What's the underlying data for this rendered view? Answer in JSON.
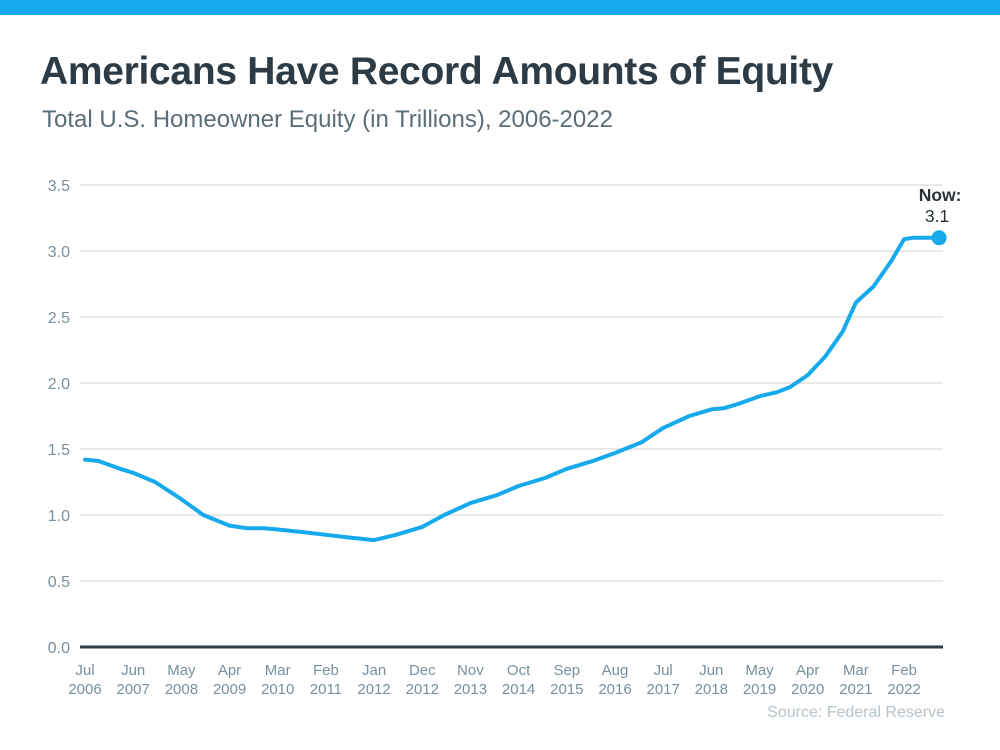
{
  "page": {
    "title": "Americans Have Record Amounts of Equity",
    "subtitle": "Total U.S. Homeowner Equity (in Trillions), 2006-2022",
    "source": "Source: Federal Reserve"
  },
  "colors": {
    "accent": "#16aaec",
    "line": "#16aaec",
    "grid": "#e2e2e2",
    "axis": "#2d3b45",
    "tick_text": "#78909c",
    "annotation_text": "#263238",
    "title_text": "#2c3b45",
    "subtitle_text": "#5b6e78",
    "source_text": "#b6c2ca"
  },
  "chart_data": {
    "type": "line",
    "title": "Americans Have Record Amounts of Equity",
    "subtitle": "Total U.S. Homeowner Equity (in Trillions), 2006-2022",
    "xlabel": "",
    "ylabel": "",
    "ylim": [
      0,
      3.5
    ],
    "grid": true,
    "legend": false,
    "yticks": [
      0.0,
      0.5,
      1.0,
      1.5,
      2.0,
      2.5,
      3.0,
      3.5
    ],
    "ytick_labels": [
      "0.0",
      "0.5",
      "1.0",
      "1.5",
      "2.0",
      "2.5",
      "3.0",
      "3.5"
    ],
    "xticks": {
      "months": [
        "Jul",
        "Jun",
        "May",
        "Apr",
        "Mar",
        "Feb",
        "Jan",
        "Dec",
        "Nov",
        "Oct",
        "Sep",
        "Aug",
        "Jul",
        "Jun",
        "May",
        "Apr",
        "Mar",
        "Feb"
      ],
      "years": [
        "2006",
        "2007",
        "2008",
        "2009",
        "2010",
        "2011",
        "2012",
        "2012",
        "2013",
        "2014",
        "2015",
        "2016",
        "2017",
        "2018",
        "2019",
        "2020",
        "2021",
        "2022"
      ]
    },
    "x_unit": "months since Jul 2006; labeled ticks every 11 months",
    "series": [
      {
        "name": "Total U.S. Homeowner Equity (in Trillions)",
        "points": [
          [
            0,
            1.42
          ],
          [
            3,
            1.41
          ],
          [
            8,
            1.35
          ],
          [
            11,
            1.32
          ],
          [
            16,
            1.25
          ],
          [
            22,
            1.12
          ],
          [
            27,
            1.0
          ],
          [
            33,
            0.92
          ],
          [
            37,
            0.9
          ],
          [
            41,
            0.9
          ],
          [
            44,
            0.89
          ],
          [
            50,
            0.87
          ],
          [
            55,
            0.85
          ],
          [
            60,
            0.83
          ],
          [
            66,
            0.81
          ],
          [
            71,
            0.85
          ],
          [
            77,
            0.91
          ],
          [
            82,
            1.0
          ],
          [
            88,
            1.09
          ],
          [
            94,
            1.15
          ],
          [
            99,
            1.22
          ],
          [
            105,
            1.28
          ],
          [
            110,
            1.35
          ],
          [
            116,
            1.41
          ],
          [
            121,
            1.47
          ],
          [
            127,
            1.55
          ],
          [
            132,
            1.66
          ],
          [
            138,
            1.75
          ],
          [
            143,
            1.8
          ],
          [
            146,
            1.81
          ],
          [
            149,
            1.84
          ],
          [
            154,
            1.9
          ],
          [
            158,
            1.93
          ],
          [
            161,
            1.97
          ],
          [
            165,
            2.06
          ],
          [
            169,
            2.2
          ],
          [
            173,
            2.39
          ],
          [
            176,
            2.61
          ],
          [
            180,
            2.73
          ],
          [
            184,
            2.92
          ],
          [
            187,
            3.09
          ],
          [
            189,
            3.1
          ],
          [
            195,
            3.1
          ]
        ]
      }
    ],
    "annotation": {
      "label": "Now:",
      "value": "3.1"
    }
  }
}
